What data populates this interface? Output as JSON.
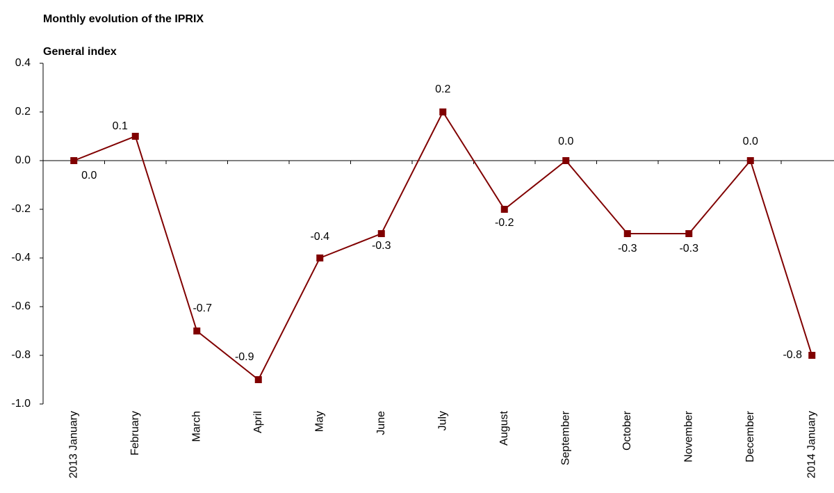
{
  "chart_data": {
    "type": "line",
    "title": "Monthly evolution of the IPRIX",
    "subtitle": "General index",
    "categories": [
      "2013 January",
      "February",
      "March",
      "April",
      "May",
      "June",
      "July",
      "August",
      "September",
      "October",
      "November",
      "December",
      "2014 January"
    ],
    "series": [
      {
        "name": "General index",
        "color": "#800000",
        "values": [
          0.0,
          0.1,
          -0.7,
          -0.9,
          -0.4,
          -0.3,
          0.2,
          -0.2,
          0.0,
          -0.3,
          -0.3,
          0.0,
          -0.8
        ],
        "value_labels": [
          "0.0",
          "0.1",
          "-0.7",
          "-0.9",
          "-0.4",
          "-0.3",
          "0.2",
          "-0.2",
          "0.0",
          "-0.3",
          "-0.3",
          "0.0",
          "-0.8"
        ]
      }
    ],
    "ylim": [
      -1.0,
      0.4
    ],
    "yticks": [
      0.4,
      0.2,
      {
        "value": 0,
        "label": "0.0"
      },
      -0.2,
      -0.4,
      -0.6,
      -0.8,
      {
        "value": -1,
        "label": "-1.0"
      }
    ],
    "grid": false
  }
}
